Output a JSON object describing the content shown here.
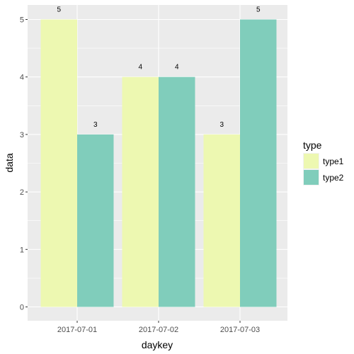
{
  "chart_data": {
    "type": "bar",
    "categories": [
      "2017-07-01",
      "2017-07-02",
      "2017-07-03"
    ],
    "series": [
      {
        "name": "type1",
        "values": [
          5,
          4,
          3
        ],
        "color": "#EDF8B1"
      },
      {
        "name": "type2",
        "values": [
          3,
          4,
          5
        ],
        "color": "#80CDBB"
      }
    ],
    "xlabel": "daykey",
    "ylabel": "data",
    "ylim": [
      0,
      5
    ],
    "yticks": [
      0,
      1,
      2,
      3,
      4,
      5
    ],
    "grid": true,
    "legend": {
      "title": "type",
      "placement": "right"
    },
    "panel_background": "#EBEBEB",
    "grid_color": "#FFFFFF"
  }
}
